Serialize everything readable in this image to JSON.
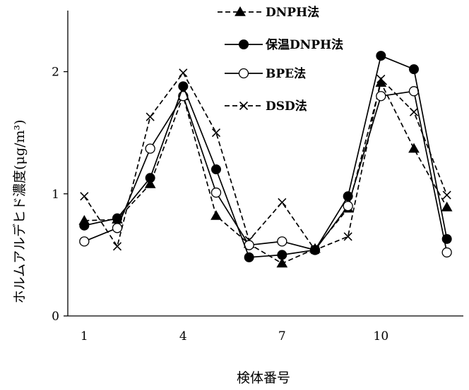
{
  "chart_data": {
    "type": "line",
    "xlabel": "検体番号",
    "ylabel": "ホルムアルデヒド濃度(μg/m³)",
    "x": [
      1,
      2,
      3,
      4,
      5,
      6,
      7,
      8,
      9,
      10,
      11,
      12
    ],
    "x_tick_labels": [
      "1",
      "4",
      "7",
      "10"
    ],
    "x_tick_values": [
      1,
      4,
      7,
      10
    ],
    "y_tick_labels": [
      "0",
      "1",
      "2"
    ],
    "y_tick_values": [
      0,
      1,
      2
    ],
    "ylim": [
      0,
      2.5
    ],
    "xlim": [
      0.5,
      12.5
    ],
    "grid": false,
    "legend_position": "top-right",
    "series": [
      {
        "name": "DNPH法",
        "marker": "triangle-filled",
        "line_style": "dashed",
        "values": [
          0.78,
          0.79,
          1.08,
          1.8,
          0.82,
          0.59,
          0.43,
          0.55,
          0.88,
          1.91,
          1.37,
          0.89
        ]
      },
      {
        "name": "保温DNPH法",
        "marker": "circle-filled",
        "line_style": "solid",
        "values": [
          0.74,
          0.8,
          1.13,
          1.88,
          1.2,
          0.48,
          0.5,
          0.54,
          0.98,
          2.13,
          2.02,
          0.63
        ]
      },
      {
        "name": "BPE法",
        "marker": "circle-open",
        "line_style": "solid",
        "values": [
          0.61,
          0.72,
          1.37,
          1.8,
          1.01,
          0.58,
          0.61,
          0.54,
          0.9,
          1.8,
          1.84,
          0.52
        ]
      },
      {
        "name": "DSD法",
        "marker": "x",
        "line_style": "dashed",
        "values": [
          0.98,
          0.57,
          1.63,
          1.99,
          1.5,
          0.62,
          0.93,
          0.54,
          0.65,
          1.94,
          1.67,
          0.99
        ]
      }
    ]
  }
}
